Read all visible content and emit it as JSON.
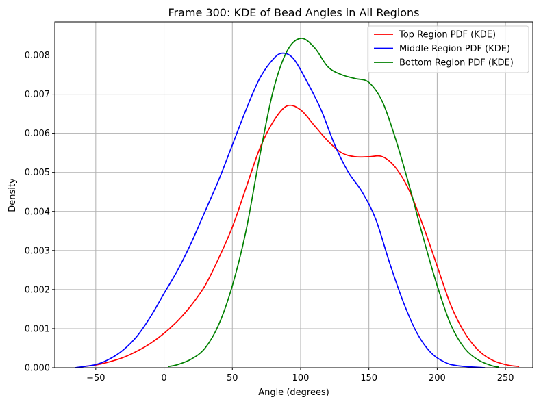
{
  "chart_data": {
    "type": "line",
    "title": "Frame 300: KDE of Bead Angles in All Regions",
    "xlabel": "Angle (degrees)",
    "ylabel": "Density",
    "xlim": [
      -80,
      270
    ],
    "ylim": [
      0,
      0.00885
    ],
    "xticks": [
      -50,
      0,
      50,
      100,
      150,
      200,
      250
    ],
    "xtick_labels": [
      "−50",
      "0",
      "50",
      "100",
      "150",
      "200",
      "250"
    ],
    "yticks": [
      0,
      0.001,
      0.002,
      0.003,
      0.004,
      0.005,
      0.006,
      0.007,
      0.008
    ],
    "ytick_labels": [
      "0.000",
      "0.001",
      "0.002",
      "0.003",
      "0.004",
      "0.005",
      "0.006",
      "0.007",
      "0.008"
    ],
    "grid": true,
    "legend_position": "top-right",
    "series": [
      {
        "name": "Top Region PDF (KDE)",
        "color": "#ff0000",
        "points": [
          [
            -60,
            3e-05
          ],
          [
            -50,
            7e-05
          ],
          [
            -40,
            0.00015
          ],
          [
            -30,
            0.00026
          ],
          [
            -20,
            0.00042
          ],
          [
            -10,
            0.00062
          ],
          [
            0,
            0.00088
          ],
          [
            10,
            0.0012
          ],
          [
            20,
            0.0016
          ],
          [
            30,
            0.0021
          ],
          [
            40,
            0.0028
          ],
          [
            50,
            0.0036
          ],
          [
            60,
            0.0046
          ],
          [
            70,
            0.0056
          ],
          [
            80,
            0.0063
          ],
          [
            90,
            0.0067
          ],
          [
            100,
            0.0066
          ],
          [
            110,
            0.0062
          ],
          [
            120,
            0.0058
          ],
          [
            130,
            0.0055
          ],
          [
            140,
            0.0054
          ],
          [
            150,
            0.0054
          ],
          [
            160,
            0.0054
          ],
          [
            170,
            0.0051
          ],
          [
            180,
            0.0045
          ],
          [
            190,
            0.0036
          ],
          [
            200,
            0.0026
          ],
          [
            210,
            0.0016
          ],
          [
            220,
            0.0009
          ],
          [
            230,
            0.00045
          ],
          [
            240,
            0.0002
          ],
          [
            250,
            8e-05
          ],
          [
            260,
            3e-05
          ]
        ]
      },
      {
        "name": "Middle Region PDF (KDE)",
        "color": "#0000ff",
        "points": [
          [
            -65,
            0.0
          ],
          [
            -50,
            8e-05
          ],
          [
            -40,
            0.00022
          ],
          [
            -30,
            0.00045
          ],
          [
            -20,
            0.0008
          ],
          [
            -10,
            0.0013
          ],
          [
            0,
            0.0019
          ],
          [
            10,
            0.0025
          ],
          [
            20,
            0.0032
          ],
          [
            30,
            0.004
          ],
          [
            40,
            0.0048
          ],
          [
            50,
            0.0057
          ],
          [
            60,
            0.0066
          ],
          [
            70,
            0.0074
          ],
          [
            80,
            0.0079
          ],
          [
            87,
            0.00805
          ],
          [
            95,
            0.0079
          ],
          [
            105,
            0.0073
          ],
          [
            115,
            0.0066
          ],
          [
            125,
            0.0057
          ],
          [
            135,
            0.005
          ],
          [
            145,
            0.0045
          ],
          [
            155,
            0.0038
          ],
          [
            165,
            0.0027
          ],
          [
            175,
            0.0017
          ],
          [
            185,
            0.0009
          ],
          [
            195,
            0.0004
          ],
          [
            205,
            0.00015
          ],
          [
            215,
            5e-05
          ],
          [
            235,
            0.0
          ]
        ]
      },
      {
        "name": "Bottom Region PDF (KDE)",
        "color": "#008000",
        "points": [
          [
            3,
            3e-05
          ],
          [
            10,
            8e-05
          ],
          [
            20,
            0.00022
          ],
          [
            30,
            0.0005
          ],
          [
            40,
            0.0011
          ],
          [
            50,
            0.0021
          ],
          [
            60,
            0.0035
          ],
          [
            70,
            0.0054
          ],
          [
            80,
            0.0071
          ],
          [
            90,
            0.0081
          ],
          [
            100,
            0.00843
          ],
          [
            110,
            0.0082
          ],
          [
            120,
            0.0077
          ],
          [
            130,
            0.0075
          ],
          [
            140,
            0.0074
          ],
          [
            150,
            0.0073
          ],
          [
            160,
            0.0068
          ],
          [
            170,
            0.0058
          ],
          [
            180,
            0.0046
          ],
          [
            190,
            0.0033
          ],
          [
            200,
            0.0021
          ],
          [
            210,
            0.0011
          ],
          [
            220,
            0.0005
          ],
          [
            230,
            0.0002
          ],
          [
            240,
            5e-05
          ],
          [
            245,
            2e-05
          ]
        ]
      }
    ]
  }
}
